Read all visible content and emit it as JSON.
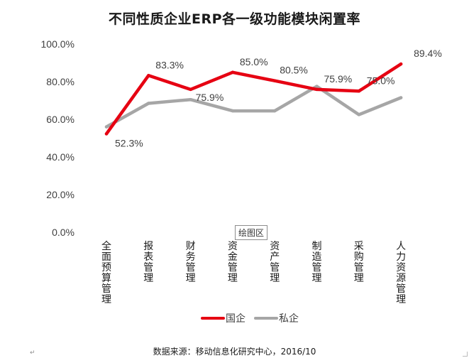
{
  "chart_data": {
    "type": "line",
    "title": "不同性质企业ERP各一级功能模块闲置率",
    "categories": [
      "全面预算管理",
      "报表管理",
      "财务管理",
      "资金管理",
      "资产管理",
      "制造管理",
      "采购管理",
      "人力资源管理"
    ],
    "series": [
      {
        "name": "国企",
        "color": "#e60012",
        "values": [
          52.3,
          83.3,
          75.9,
          85.0,
          80.5,
          75.9,
          75.0,
          89.4
        ],
        "labels": [
          "52.3%",
          "83.3%",
          "75.9%",
          "85.0%",
          "80.5%",
          "75.9%",
          "75.0%",
          "89.4%"
        ]
      },
      {
        "name": "私企",
        "color": "#a6a6a6",
        "values": [
          56.0,
          68.5,
          70.5,
          64.5,
          64.5,
          77.5,
          62.5,
          71.5
        ]
      }
    ],
    "yticks": [
      "0.0%",
      "20.0%",
      "40.0%",
      "60.0%",
      "80.0%",
      "100.0%"
    ],
    "ylim": [
      0,
      100
    ],
    "grid": false,
    "legend_position": "bottom"
  },
  "plot_area_tag": "绘图区",
  "source_note": "数据来源：移动信息化研究中心，2016/10",
  "colors": {
    "title": "#1a1a1a",
    "text": "#404040"
  }
}
